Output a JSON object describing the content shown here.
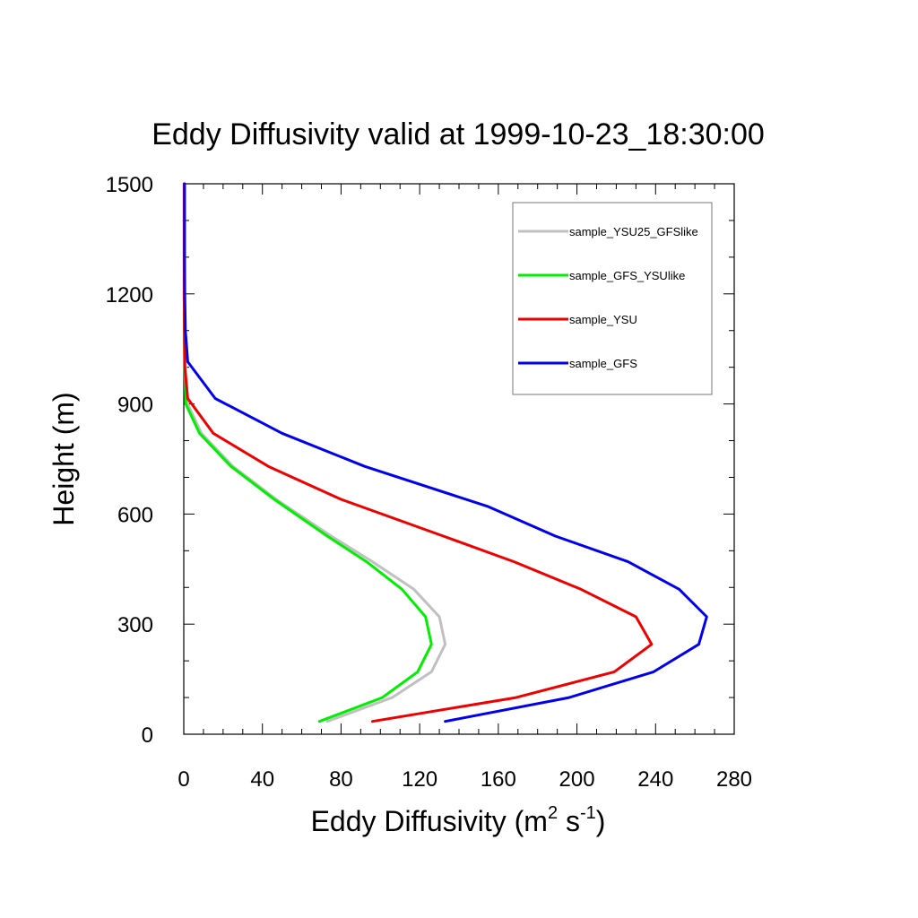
{
  "chart_data": {
    "type": "line",
    "title": "Eddy Diffusivity valid at 1999-10-23_18:30:00",
    "xlabel": "Eddy Diffusivity (m",
    "xlabel_sup1": "2",
    "xlabel_mid": " s",
    "xlabel_sup2": "-1",
    "xlabel_end": ")",
    "ylabel": "Height (m)",
    "xlim": [
      0,
      280
    ],
    "ylim": [
      0,
      1500
    ],
    "xticks": [
      0,
      40,
      80,
      120,
      160,
      200,
      240,
      280
    ],
    "yticks": [
      0,
      300,
      600,
      900,
      1200,
      1500
    ],
    "grid": false,
    "legend_position": "top-right",
    "series": [
      {
        "name": "sample_YSU25_GFSlike",
        "color": "#c0c0c0",
        "points": [
          [
            73,
            35
          ],
          [
            106,
            100
          ],
          [
            126,
            170
          ],
          [
            133,
            245
          ],
          [
            130,
            320
          ],
          [
            117,
            395
          ],
          [
            96,
            470
          ],
          [
            75,
            540
          ],
          [
            47,
            640
          ],
          [
            25,
            730
          ],
          [
            9,
            820
          ],
          [
            2,
            900
          ],
          [
            1,
            1000
          ],
          [
            0.5,
            1100
          ],
          [
            0.3,
            1200
          ],
          [
            0.2,
            1300
          ],
          [
            0.2,
            1400
          ],
          [
            0.2,
            1500
          ]
        ]
      },
      {
        "name": "sample_GFS_YSUlike",
        "color": "#00ee00",
        "points": [
          [
            69,
            35
          ],
          [
            101,
            100
          ],
          [
            119,
            170
          ],
          [
            126,
            245
          ],
          [
            123,
            320
          ],
          [
            111,
            395
          ],
          [
            93,
            470
          ],
          [
            73,
            540
          ],
          [
            46,
            640
          ],
          [
            24,
            730
          ],
          [
            8,
            820
          ],
          [
            1,
            900
          ],
          [
            0.5,
            1000
          ],
          [
            0.3,
            1100
          ],
          [
            0.2,
            1200
          ],
          [
            0.2,
            1300
          ],
          [
            0.2,
            1400
          ],
          [
            0.2,
            1500
          ]
        ]
      },
      {
        "name": "sample_YSU",
        "color": "#ee0000",
        "points": [
          [
            96,
            35
          ],
          [
            169,
            100
          ],
          [
            219,
            170
          ],
          [
            238,
            245
          ],
          [
            230,
            320
          ],
          [
            202,
            395
          ],
          [
            168,
            470
          ],
          [
            132,
            540
          ],
          [
            80,
            640
          ],
          [
            43,
            730
          ],
          [
            15,
            820
          ],
          [
            2,
            915
          ],
          [
            0.5,
            1000
          ],
          [
            0.3,
            1100
          ],
          [
            0.2,
            1200
          ],
          [
            0.2,
            1300
          ],
          [
            0.2,
            1400
          ],
          [
            0.2,
            1500
          ]
        ]
      },
      {
        "name": "sample_GFS",
        "color": "#0000ee",
        "points": [
          [
            133,
            35
          ],
          [
            196,
            100
          ],
          [
            239,
            170
          ],
          [
            262,
            245
          ],
          [
            266,
            320
          ],
          [
            252,
            395
          ],
          [
            226,
            470
          ],
          [
            189,
            540
          ],
          [
            155,
            620
          ],
          [
            92,
            730
          ],
          [
            50,
            820
          ],
          [
            16,
            915
          ],
          [
            2,
            1015
          ],
          [
            0.8,
            1100
          ],
          [
            0.5,
            1200
          ],
          [
            0.4,
            1300
          ],
          [
            0.4,
            1400
          ],
          [
            0.4,
            1500
          ]
        ]
      }
    ]
  }
}
